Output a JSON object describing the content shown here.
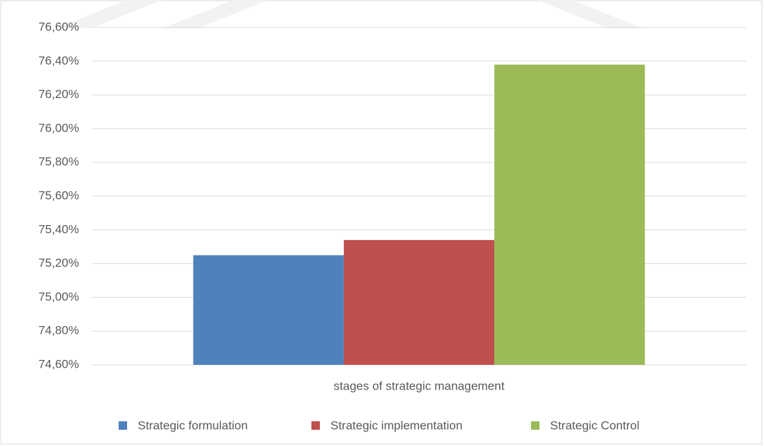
{
  "chart_data": {
    "type": "bar",
    "categories": [
      "stages of strategic management"
    ],
    "series": [
      {
        "name": "Strategic formulation",
        "color": "#4f81bd",
        "values": [
          75.25
        ]
      },
      {
        "name": "Strategic implementation",
        "color": "#c0504d",
        "values": [
          75.34
        ]
      },
      {
        "name": "Strategic Control",
        "color": "#9bbb59",
        "values": [
          76.38
        ]
      }
    ],
    "ylim": [
      74.6,
      76.6
    ],
    "yticks": [
      {
        "value": 74.6,
        "label": "74,60%"
      },
      {
        "value": 74.8,
        "label": "74,80%"
      },
      {
        "value": 75.0,
        "label": "75,00%"
      },
      {
        "value": 75.2,
        "label": "75,20%"
      },
      {
        "value": 75.4,
        "label": "75,40%"
      },
      {
        "value": 75.6,
        "label": "75,60%"
      },
      {
        "value": 75.8,
        "label": "75,80%"
      },
      {
        "value": 76.0,
        "label": "76,00%"
      },
      {
        "value": 76.2,
        "label": "76,20%"
      },
      {
        "value": 76.4,
        "label": "76,40%"
      },
      {
        "value": 76.6,
        "label": "76,60%"
      }
    ],
    "grid": true,
    "legend": "bottom"
  }
}
